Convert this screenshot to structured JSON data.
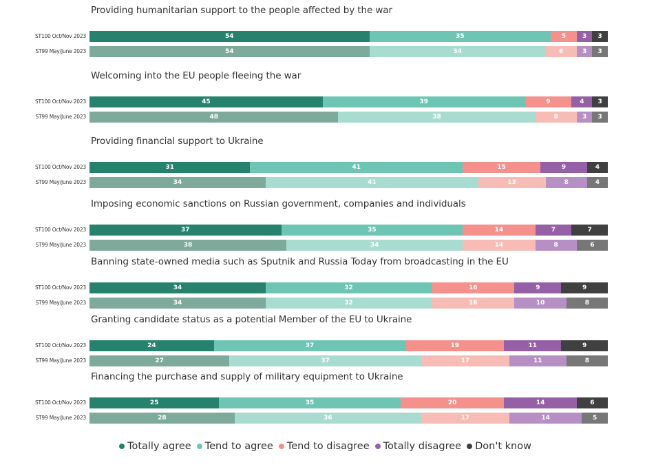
{
  "chart_data": {
    "type": "bar",
    "orientation": "horizontal",
    "stacked": true,
    "unit": "%",
    "xlim": [
      0,
      100
    ],
    "series_names": [
      "Totally agree",
      "Tend to agree",
      "Tend to disagree",
      "Totally disagree",
      "Don't know"
    ],
    "colors": {
      "current": [
        "#26826c",
        "#6fc5b4",
        "#f4918c",
        "#9660a6",
        "#404040"
      ],
      "previous": [
        "#7daa9b",
        "#a9dcd1",
        "#f7bcb6",
        "#b690c5",
        "#777777"
      ]
    },
    "row_labels": [
      "ST100 Oct/Nov 2023",
      "ST99 May/June 2023"
    ],
    "groups": [
      {
        "title": "Providing humanitarian support to the people affected by the war",
        "rows": [
          {
            "label": "ST100 Oct/Nov 2023",
            "values": [
              54,
              35,
              5,
              3,
              3
            ]
          },
          {
            "label": "ST99 May/June 2023",
            "values": [
              54,
              34,
              6,
              3,
              3
            ]
          }
        ]
      },
      {
        "title": "Welcoming into the EU people fleeing the war",
        "rows": [
          {
            "label": "ST100 Oct/Nov 2023",
            "values": [
              45,
              39,
              9,
              4,
              3
            ]
          },
          {
            "label": "ST99 May/June 2023",
            "values": [
              48,
              38,
              8,
              3,
              3
            ]
          }
        ]
      },
      {
        "title": "Providing financial support to Ukraine",
        "rows": [
          {
            "label": "ST100 Oct/Nov 2023",
            "values": [
              31,
              41,
              15,
              9,
              4
            ]
          },
          {
            "label": "ST99 May/June 2023",
            "values": [
              34,
              41,
              13,
              8,
              4
            ]
          }
        ]
      },
      {
        "title": "Imposing economic sanctions on Russian government, companies and individuals",
        "rows": [
          {
            "label": "ST100 Oct/Nov 2023",
            "values": [
              37,
              35,
              14,
              7,
              7
            ]
          },
          {
            "label": "ST99 May/June 2023",
            "values": [
              38,
              34,
              14,
              8,
              6
            ]
          }
        ]
      },
      {
        "title": "Banning state-owned media such as Sputnik and Russia Today from broadcasting in the EU",
        "rows": [
          {
            "label": "ST100 Oct/Nov 2023",
            "values": [
              34,
              32,
              16,
              9,
              9
            ]
          },
          {
            "label": "ST99 May/June 2023",
            "values": [
              34,
              32,
              16,
              10,
              8
            ]
          }
        ]
      },
      {
        "title": "Granting candidate status as a potential Member of the EU to Ukraine",
        "rows": [
          {
            "label": "ST100 Oct/Nov 2023",
            "values": [
              24,
              37,
              19,
              11,
              9
            ]
          },
          {
            "label": "ST99 May/June 2023",
            "values": [
              27,
              37,
              17,
              11,
              8
            ]
          }
        ]
      },
      {
        "title": "Financing the purchase and supply of military equipment to Ukraine",
        "rows": [
          {
            "label": "ST100 Oct/Nov 2023",
            "values": [
              25,
              35,
              20,
              14,
              6
            ]
          },
          {
            "label": "ST99 May/June 2023",
            "values": [
              28,
              36,
              17,
              14,
              5
            ]
          }
        ]
      }
    ],
    "legend": {
      "position": "bottom-center",
      "items": [
        {
          "label": "Totally agree",
          "color": "#26826c"
        },
        {
          "label": "Tend to agree",
          "color": "#6fc5b4"
        },
        {
          "label": "Tend to disagree",
          "color": "#f4918c"
        },
        {
          "label": "Totally disagree",
          "color": "#9660a6"
        },
        {
          "label": "Don't know",
          "color": "#404040"
        }
      ]
    },
    "grid": false
  }
}
